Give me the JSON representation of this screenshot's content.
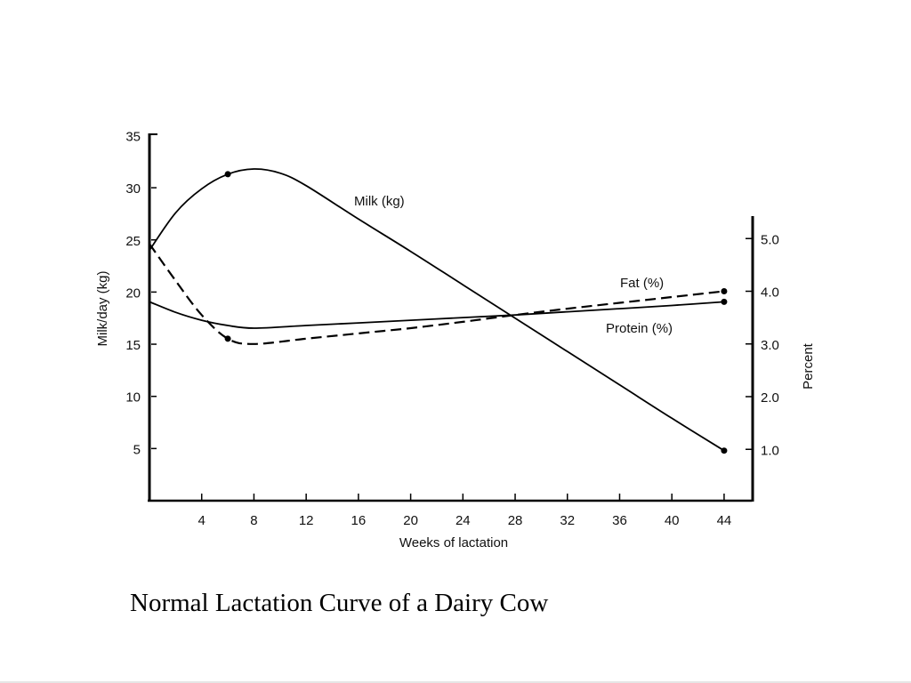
{
  "caption": "Normal Lactation Curve of a Dairy Cow",
  "chart_data": {
    "type": "line",
    "title": "Normal Lactation Curve of a Dairy Cow",
    "xlabel": "Weeks of lactation",
    "ylabel": "Milk/day (kg)",
    "ylabel_right": "Percent",
    "xlim": [
      0,
      46
    ],
    "ylim": [
      0,
      35
    ],
    "ylim_right": [
      0,
      5.5
    ],
    "x_ticks": [
      4,
      8,
      12,
      16,
      20,
      24,
      28,
      32,
      36,
      40,
      44
    ],
    "x_tick_labels": [
      "4",
      "8",
      "12",
      "16",
      "20",
      "24",
      "28",
      "32",
      "36",
      "40",
      "44"
    ],
    "y_ticks": [
      5,
      10,
      15,
      20,
      25,
      30,
      35
    ],
    "y_tick_labels": [
      "5",
      "10",
      "15",
      "20",
      "25",
      "30",
      "35"
    ],
    "y_right_ticks": [
      1.0,
      2.0,
      3.0,
      4.0,
      5.0
    ],
    "y_right_tick_labels": [
      "1.0",
      "2.0",
      "3.0",
      "4.0",
      "5.0"
    ],
    "grid": false,
    "legend": "inline labels",
    "series": [
      {
        "name": "Milk (kg)",
        "axis": "left",
        "style": "solid",
        "x": [
          0,
          2,
          4,
          6,
          8,
          10,
          12,
          16,
          20,
          24,
          28,
          32,
          36,
          40,
          44
        ],
        "values": [
          24.0,
          27.6,
          29.9,
          31.3,
          31.8,
          31.4,
          30.2,
          27.0,
          23.9,
          20.7,
          17.5,
          14.3,
          11.1,
          7.9,
          4.8
        ],
        "markers_at": [
          6,
          44
        ]
      },
      {
        "name": "Fat (%)",
        "axis": "right",
        "style": "dashed",
        "x": [
          0,
          2,
          4,
          6,
          8,
          12,
          16,
          20,
          24,
          28,
          32,
          36,
          40,
          44
        ],
        "values": [
          4.9,
          4.2,
          3.55,
          3.1,
          3.0,
          3.1,
          3.2,
          3.3,
          3.42,
          3.55,
          3.67,
          3.78,
          3.89,
          4.0
        ],
        "markers_at": [
          6,
          44
        ]
      },
      {
        "name": "Protein (%)",
        "axis": "right",
        "style": "solid",
        "x": [
          0,
          2,
          4,
          6,
          8,
          12,
          16,
          20,
          24,
          28,
          32,
          36,
          40,
          44
        ],
        "values": [
          3.8,
          3.6,
          3.45,
          3.35,
          3.3,
          3.35,
          3.4,
          3.45,
          3.5,
          3.55,
          3.61,
          3.67,
          3.73,
          3.8
        ],
        "markers_at": [
          44
        ]
      }
    ]
  }
}
